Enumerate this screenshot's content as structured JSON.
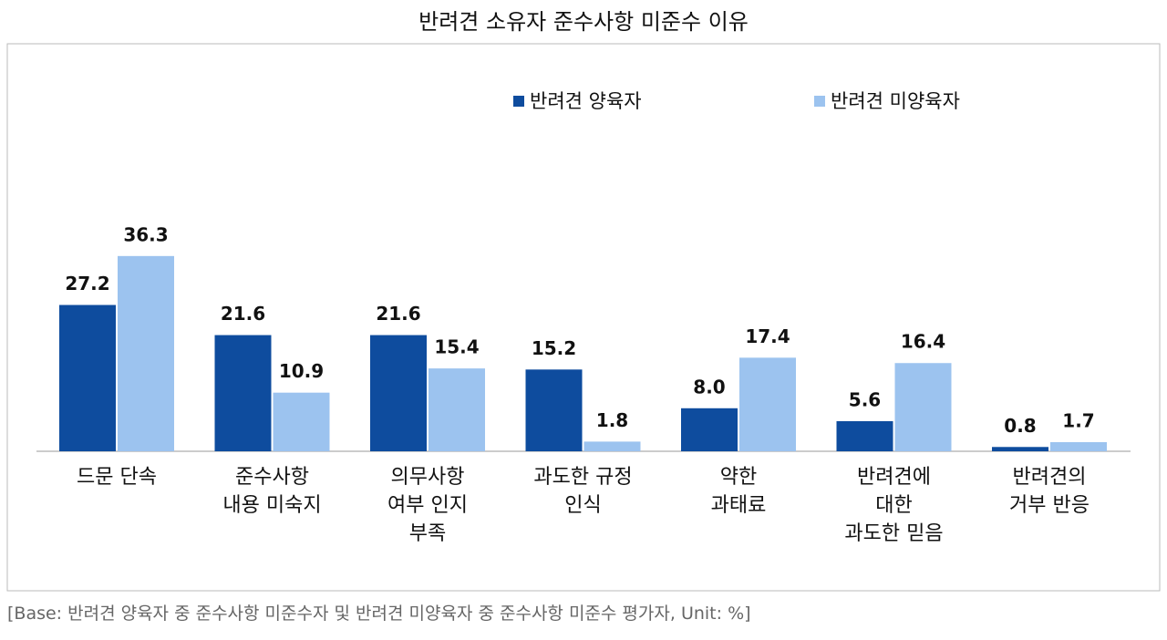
{
  "chart_data": {
    "type": "bar",
    "title": "반려견 소유자 준수사항 미준수 이유",
    "categories": [
      "드문 단속",
      "준수사항\n내용 미숙지",
      "의무사항\n여부 인지\n부족",
      "과도한 규정\n인식",
      "약한\n과태료",
      "반려견에\n대한\n과도한 믿음",
      "반려견의\n거부 반응"
    ],
    "series": [
      {
        "name": "반려견 양육자",
        "color": "#0e4c9e",
        "values": [
          27.2,
          21.6,
          21.6,
          15.2,
          8.0,
          5.6,
          0.8
        ],
        "value_labels": [
          "27.2",
          "21.6",
          "21.6",
          "15.2",
          "8.0",
          "5.6",
          "0.8"
        ]
      },
      {
        "name": "반려견 미양육자",
        "color": "#9cc3ef",
        "values": [
          36.3,
          10.9,
          15.4,
          1.8,
          17.4,
          16.4,
          1.7
        ]
      }
    ],
    "note": "[Base: 반려견 양육자 중 준수사항 미준수자 및 반려견 미양육자 중 준수사항 미준수 평가자, Unit: %]"
  }
}
